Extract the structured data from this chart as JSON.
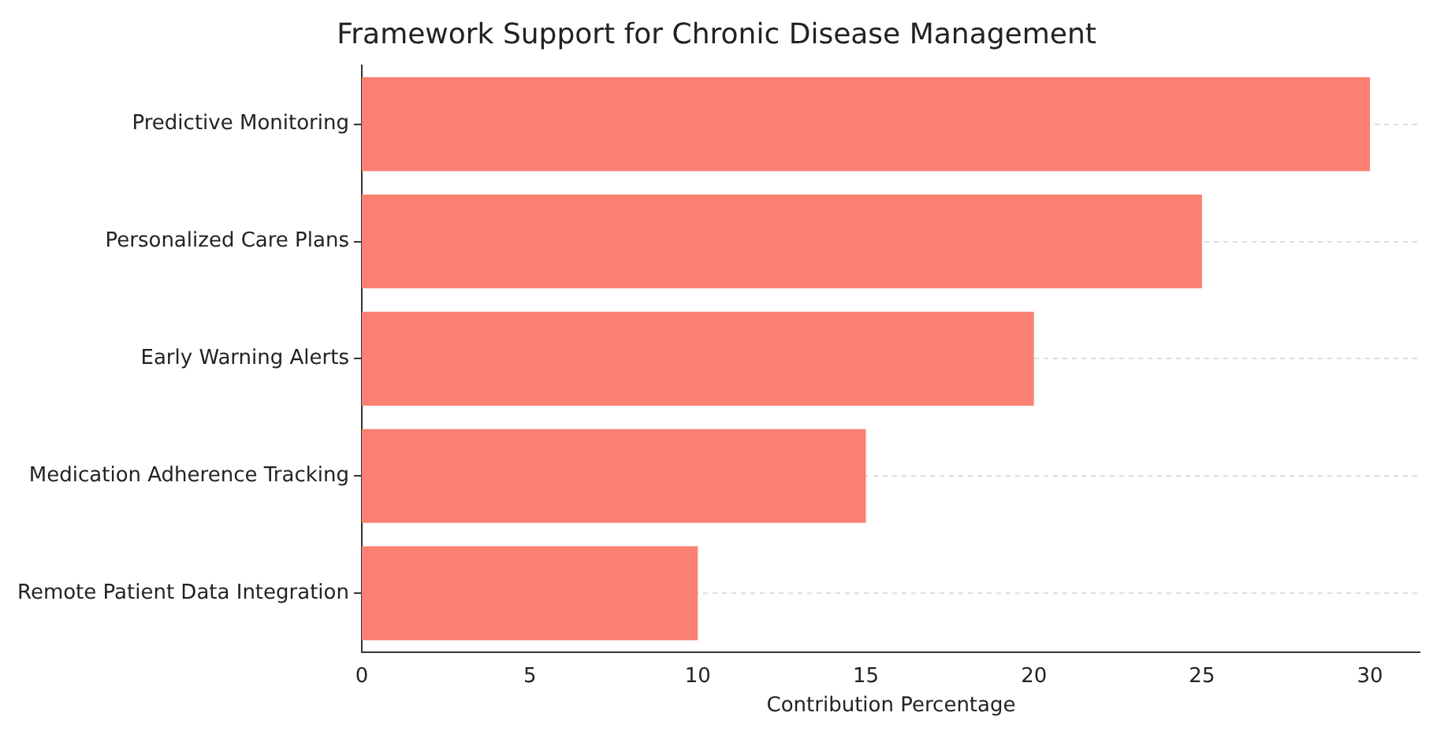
{
  "chart_data": {
    "type": "bar",
    "orientation": "horizontal",
    "title": "Framework Support for Chronic Disease Management",
    "xlabel": "Contribution Percentage",
    "categories": [
      "Predictive Monitoring",
      "Personalized Care Plans",
      "Early Warning Alerts",
      "Medication Adherence Tracking",
      "Remote Patient Data Integration"
    ],
    "values": [
      30,
      25,
      20,
      15,
      10
    ],
    "color": "#fa8072",
    "xlim": [
      0,
      31.5
    ],
    "xticks": [
      0,
      5,
      10,
      15,
      20,
      25,
      30
    ],
    "grid": "y",
    "legend": false
  }
}
